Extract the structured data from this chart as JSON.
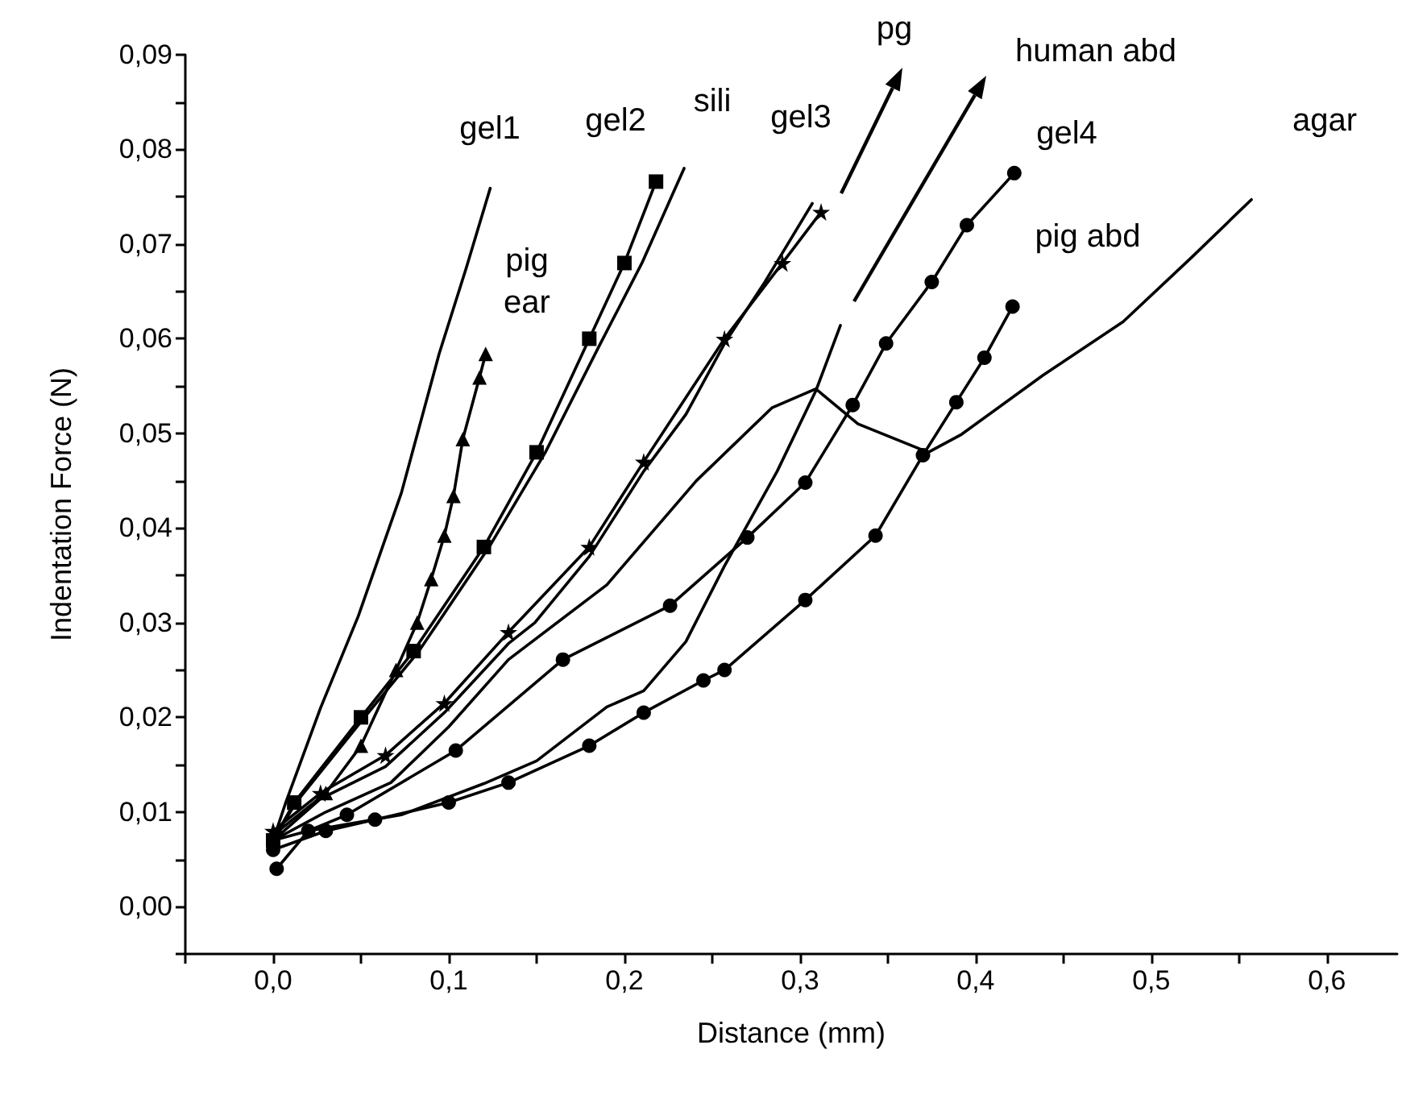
{
  "chart_data": {
    "type": "line",
    "xlabel": "Distance (mm)",
    "ylabel": "Indentation Force (N)",
    "xlim": [
      -0.05,
      0.64
    ],
    "ylim": [
      -0.005,
      0.09
    ],
    "xticks": [
      {
        "value": -0.05,
        "label": null
      },
      {
        "value": 0,
        "label": "0,0"
      },
      {
        "value": 0.05,
        "label": null
      },
      {
        "value": 0.1,
        "label": "0,1"
      },
      {
        "value": 0.15,
        "label": null
      },
      {
        "value": 0.2,
        "label": "0,2"
      },
      {
        "value": 0.25,
        "label": null
      },
      {
        "value": 0.3,
        "label": "0,3"
      },
      {
        "value": 0.35,
        "label": null
      },
      {
        "value": 0.4,
        "label": "0,4"
      },
      {
        "value": 0.45,
        "label": null
      },
      {
        "value": 0.5,
        "label": "0,5"
      },
      {
        "value": 0.55,
        "label": null
      },
      {
        "value": 0.6,
        "label": "0,6"
      }
    ],
    "yticks": [
      {
        "value": -0.005,
        "label": null
      },
      {
        "value": 0,
        "label": "0,00"
      },
      {
        "value": 0.005,
        "label": null
      },
      {
        "value": 0.01,
        "label": "0,01"
      },
      {
        "value": 0.015,
        "label": null
      },
      {
        "value": 0.02,
        "label": "0,02"
      },
      {
        "value": 0.025,
        "label": null
      },
      {
        "value": 0.03,
        "label": "0,03"
      },
      {
        "value": 0.035,
        "label": null
      },
      {
        "value": 0.04,
        "label": "0,04"
      },
      {
        "value": 0.045,
        "label": null
      },
      {
        "value": 0.05,
        "label": "0,05"
      },
      {
        "value": 0.055,
        "label": null
      },
      {
        "value": 0.06,
        "label": "0,06"
      },
      {
        "value": 0.065,
        "label": null
      },
      {
        "value": 0.07,
        "label": "0,07"
      },
      {
        "value": 0.075,
        "label": null
      },
      {
        "value": 0.08,
        "label": "0,08"
      },
      {
        "value": 0.085,
        "label": null
      },
      {
        "value": 0.09,
        "label": "0,09"
      }
    ],
    "grid": false,
    "line_style": "solid",
    "series": [
      {
        "color": "#000000",
        "x": [
          0.0,
          0.007,
          0.027,
          0.0485,
          0.073,
          0.0945,
          0.11,
          0.1236
        ],
        "values": [
          0.007,
          0.0109,
          0.021,
          0.0307,
          0.0437,
          0.0584,
          0.0675,
          0.0759
        ]
      },
      {
        "color": "#000000",
        "marker": "triangle",
        "x": [
          0.003,
          0.03,
          0.05,
          0.07,
          0.082,
          0.09,
          0.0975,
          0.1027,
          0.108,
          0.1175,
          0.121
        ],
        "values": [
          0.008,
          0.012,
          0.017,
          0.025,
          0.03,
          0.0346,
          0.0392,
          0.0434,
          0.0494,
          0.0559,
          0.0584
        ]
      },
      {
        "color": "#000000",
        "marker": "square",
        "x": [
          0.0,
          0.012,
          0.05,
          0.08,
          0.12,
          0.15,
          0.18,
          0.2,
          0.218
        ],
        "values": [
          0.007,
          0.011,
          0.02,
          0.027,
          0.038,
          0.048,
          0.06,
          0.068,
          0.0766
        ]
      },
      {
        "color": "#000000",
        "x": [
          0.0,
          0.013,
          0.052,
          0.083,
          0.123,
          0.155,
          0.185,
          0.21,
          0.228,
          0.234
        ],
        "values": [
          0.007,
          0.011,
          0.02,
          0.027,
          0.038,
          0.048,
          0.059,
          0.068,
          0.0755,
          0.078
        ]
      },
      {
        "color": "#000000",
        "x": [
          0.0,
          0.027,
          0.064,
          0.0975,
          0.134,
          0.149,
          0.18,
          0.211,
          0.235,
          0.257,
          0.28,
          0.307
        ],
        "values": [
          0.007,
          0.0114,
          0.0148,
          0.0205,
          0.0278,
          0.03,
          0.037,
          0.046,
          0.052,
          0.0595,
          0.066,
          0.0743
        ]
      },
      {
        "color": "#000000",
        "marker": "star",
        "x": [
          0.0,
          0.027,
          0.064,
          0.0975,
          0.134,
          0.18,
          0.211,
          0.257,
          0.29,
          0.312
        ],
        "values": [
          0.008,
          0.012,
          0.016,
          0.0215,
          0.029,
          0.038,
          0.047,
          0.06,
          0.068,
          0.0734
        ]
      },
      {
        "color": "#000000",
        "x": [
          0.0,
          0.02,
          0.073,
          0.12,
          0.15,
          0.19,
          0.211,
          0.235,
          0.257,
          0.287,
          0.309,
          0.323
        ],
        "values": [
          0.007,
          0.008,
          0.0097,
          0.013,
          0.0154,
          0.0211,
          0.0228,
          0.028,
          0.036,
          0.046,
          0.0545,
          0.0614
        ]
      },
      {
        "color": "#000000",
        "marker": "circle",
        "x": [
          0.002,
          0.02,
          0.042,
          0.104,
          0.165,
          0.226,
          0.27,
          0.303,
          0.33,
          0.349,
          0.375,
          0.395,
          0.422
        ],
        "values": [
          0.004,
          0.008,
          0.0097,
          0.0165,
          0.0261,
          0.0318,
          0.039,
          0.0448,
          0.053,
          0.0595,
          0.066,
          0.072,
          0.0775
        ]
      },
      {
        "color": "#000000",
        "marker": "circle",
        "x": [
          0.0,
          0.03,
          0.058,
          0.1,
          0.134,
          0.18,
          0.211,
          0.245,
          0.257,
          0.303,
          0.343,
          0.37,
          0.389,
          0.405,
          0.421
        ],
        "values": [
          0.006,
          0.008,
          0.0092,
          0.011,
          0.0131,
          0.017,
          0.0205,
          0.0239,
          0.025,
          0.0324,
          0.0392,
          0.0477,
          0.0533,
          0.058,
          0.0634
        ]
      },
      {
        "color": "#000000",
        "x": [
          0.0,
          0.03,
          0.067,
          0.1,
          0.134,
          0.19,
          0.241,
          0.284,
          0.309,
          0.333,
          0.373,
          0.392,
          0.438,
          0.484,
          0.523,
          0.557
        ],
        "values": [
          0.007,
          0.01,
          0.0131,
          0.019,
          0.0261,
          0.034,
          0.045,
          0.0527,
          0.0547,
          0.051,
          0.048,
          0.0499,
          0.0561,
          0.0618,
          0.0686,
          0.0747
        ]
      }
    ],
    "annotations": [
      "gel1",
      "pig\near",
      "gel2",
      "sili",
      "gel3",
      "pg",
      "human abd",
      "gel4",
      "pig abd",
      "agar"
    ]
  }
}
